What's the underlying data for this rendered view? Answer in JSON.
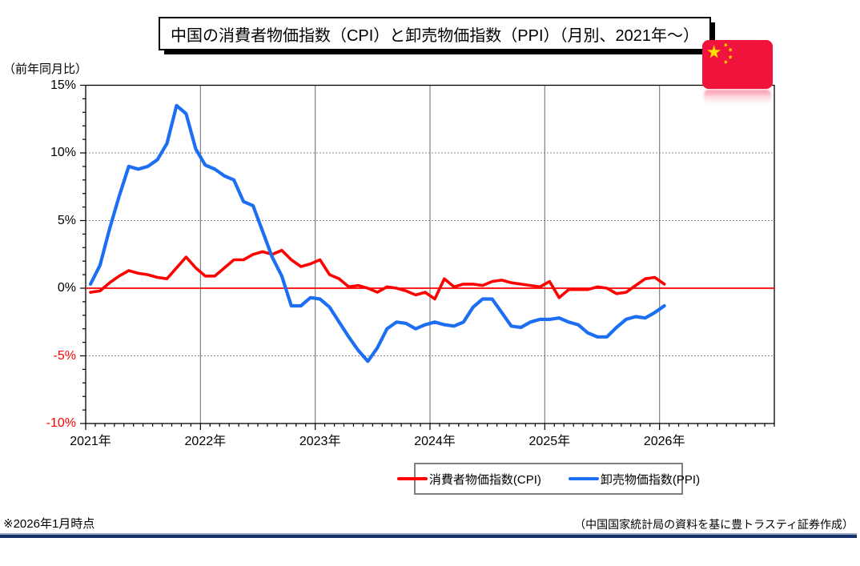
{
  "title": "中国の消費者物価指数（CPI）と卸売物価指数（PPI）（月別、2021年～）",
  "y_axis_unit": "（前年同月比）",
  "footer": {
    "left": "※2026年1月時点",
    "right": "（中国国家統計局の資料を基に豊トラスティ証券作成）"
  },
  "legend": {
    "items": [
      {
        "label": "消費者物価指数(CPI)",
        "color": "#ff0000"
      },
      {
        "label": "卸売物価指数(PPI)",
        "color": "#1c6ef2"
      }
    ]
  },
  "flag": {
    "name": "china-flag",
    "red": "#f0143c",
    "yellow": "#ffde00"
  },
  "colors": {
    "cpi_line": "#ff0000",
    "ppi_line": "#1c6ef2",
    "zero_line": "#ff0000",
    "gridline": "#8a8a8a",
    "year_gridline": "#7f7f7f",
    "axis": "#000000",
    "negative_tick_label": "#ff0000",
    "positive_tick_label": "#000000"
  },
  "chart_data": {
    "type": "line",
    "title": "中国の消費者物価指数（CPI）と卸売物価指数（PPI）（月別、2021年～）",
    "ylabel": "（前年同月比）",
    "ylim": [
      -10,
      15
    ],
    "y_ticks": [
      15,
      10,
      5,
      0,
      -5,
      -10
    ],
    "y_tick_labels": [
      "15%",
      "10%",
      "5%",
      "0%",
      "-5%",
      "-10%"
    ],
    "x_tick_labels": [
      "2021年",
      "2022年",
      "2023年",
      "2024年",
      "2025年",
      "2026年"
    ],
    "x_start_month": "2021-01",
    "x_end_month": "2026-01",
    "months_per_year": 12,
    "x_axis_total_months": 72,
    "grid": "horizontal-dotted, vertical-solid-at-years",
    "legend_position": "bottom-center",
    "zero_line": true,
    "series": [
      {
        "name": "消費者物価指数(CPI)",
        "color": "#ff0000",
        "values": [
          -0.3,
          -0.2,
          0.4,
          0.9,
          1.3,
          1.1,
          1.0,
          0.8,
          0.7,
          1.5,
          2.3,
          1.5,
          0.9,
          0.9,
          1.5,
          2.1,
          2.1,
          2.5,
          2.7,
          2.5,
          2.8,
          2.1,
          1.6,
          1.8,
          2.1,
          1.0,
          0.7,
          0.1,
          0.2,
          0.0,
          -0.3,
          0.1,
          0.0,
          -0.2,
          -0.5,
          -0.3,
          -0.8,
          0.7,
          0.1,
          0.3,
          0.3,
          0.2,
          0.5,
          0.6,
          0.4,
          0.3,
          0.2,
          0.1,
          0.5,
          -0.7,
          -0.1,
          -0.1,
          -0.1,
          0.1,
          0.0,
          -0.4,
          -0.3,
          0.2,
          0.7,
          0.8,
          0.3
        ]
      },
      {
        "name": "卸売物価指数(PPI)",
        "color": "#1c6ef2",
        "values": [
          0.3,
          1.7,
          4.4,
          6.8,
          9.0,
          8.8,
          9.0,
          9.5,
          10.7,
          13.5,
          12.9,
          10.3,
          9.1,
          8.8,
          8.3,
          8.0,
          6.4,
          6.1,
          4.2,
          2.3,
          0.9,
          -1.3,
          -1.3,
          -0.7,
          -0.8,
          -1.4,
          -2.5,
          -3.6,
          -4.6,
          -5.4,
          -4.4,
          -3.0,
          -2.5,
          -2.6,
          -3.0,
          -2.7,
          -2.5,
          -2.7,
          -2.8,
          -2.5,
          -1.4,
          -0.8,
          -0.8,
          -1.8,
          -2.8,
          -2.9,
          -2.5,
          -2.3,
          -2.3,
          -2.2,
          -2.5,
          -2.7,
          -3.3,
          -3.6,
          -3.6,
          -2.9,
          -2.3,
          -2.1,
          -2.2,
          -1.8,
          -1.3
        ]
      }
    ]
  }
}
